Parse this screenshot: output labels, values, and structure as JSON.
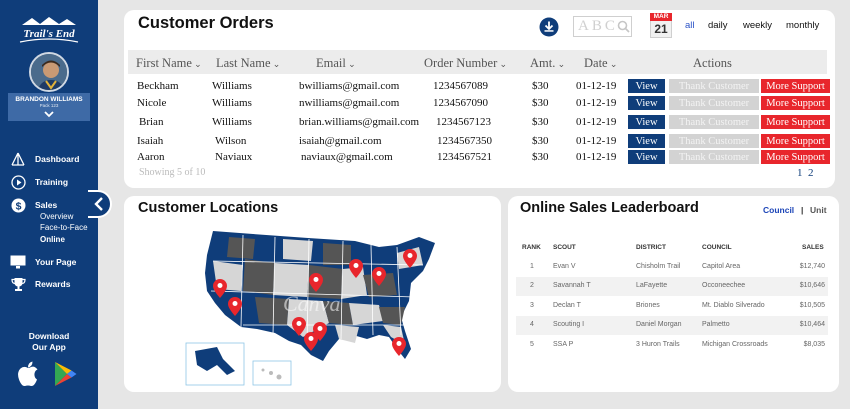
{
  "brand": {
    "logo_text": "Trail's End"
  },
  "user": {
    "name": "BRANDON WILLIAMS",
    "pack": "Pack 123"
  },
  "nav": {
    "items": [
      {
        "label": "Dashboard",
        "icon": "tent-icon"
      },
      {
        "label": "Training",
        "icon": "play-icon"
      },
      {
        "label": "Sales",
        "icon": "dollar-icon"
      },
      {
        "label": "Your Page",
        "icon": "monitor-icon"
      },
      {
        "label": "Rewards",
        "icon": "trophy-icon"
      }
    ],
    "sales_sub": [
      "Overview",
      "Face-to-Face",
      "Online"
    ],
    "download": {
      "line1": "Download",
      "line2": "Our App"
    }
  },
  "orders": {
    "title": "Customer Orders",
    "calendar": {
      "month": "MAR",
      "day": "21"
    },
    "search_placeholder": "ABC",
    "filters": [
      "all",
      "daily",
      "weekly",
      "monthly"
    ],
    "columns": [
      "First Name",
      "Last Name",
      "Email",
      "Order Number",
      "Amt.",
      "Date",
      "Actions"
    ],
    "rows": [
      {
        "first": "Beckham",
        "last": "Williams",
        "email": "bwilliams@gmail.com",
        "order": "1234567089",
        "amt": "$30",
        "date": "01-12-19"
      },
      {
        "first": "Nicole",
        "last": "Williams",
        "email": "nwilliams@gmail.com",
        "order": "1234567090",
        "amt": "$30",
        "date": "01-12-19"
      },
      {
        "first": "Brian",
        "last": "Williams",
        "email": "brian.williams@gmail.com",
        "order": "1234567123",
        "amt": "$30",
        "date": "01-12-19"
      },
      {
        "first": "Isaiah",
        "last": "Wilson",
        "email": "isaiah@gmail.com",
        "order": "1234567350",
        "amt": "$30",
        "date": "01-12-19"
      },
      {
        "first": "Aaron",
        "last": "Naviaux",
        "email": "naviaux@gmail.com",
        "order": "1234567521",
        "amt": "$30",
        "date": "01-12-19"
      }
    ],
    "actions": {
      "view": "View",
      "thank": "Thank Customer",
      "more": "More Support"
    },
    "showing": "Showing 5 of 10",
    "pages": [
      "1",
      "2"
    ]
  },
  "locations": {
    "title": "Customer Locations",
    "watermark": "Canva"
  },
  "leaderboard": {
    "title": "Online Sales Leaderboard",
    "toggle": {
      "council": "Council",
      "separator": "|",
      "unit": "Unit"
    },
    "columns": [
      "RANK",
      "SCOUT",
      "DISTRICT",
      "COUNCIL",
      "SALES"
    ],
    "rows": [
      {
        "rank": "1",
        "scout": "Evan V",
        "district": "Chisholm Trail",
        "council": "Capitol Area",
        "sales": "$12,740"
      },
      {
        "rank": "2",
        "scout": "Savannah T",
        "district": "LaFayette",
        "council": "Occoneechee",
        "sales": "$10,646"
      },
      {
        "rank": "3",
        "scout": "Declan T",
        "district": "Briones",
        "council": "Mt. Diablo Silverado",
        "sales": "$10,505"
      },
      {
        "rank": "4",
        "scout": "Scouting I",
        "district": "Daniel Morgan",
        "council": "Palmetto",
        "sales": "$10,464"
      },
      {
        "rank": "5",
        "scout": "SSA P",
        "district": "3 Huron Trails",
        "council": "Michigan Crossroads",
        "sales": "$8,035"
      }
    ]
  },
  "colors": {
    "navy": "#0f3d7a",
    "red": "#e8262c",
    "thank_gray": "#d3d3d3"
  }
}
